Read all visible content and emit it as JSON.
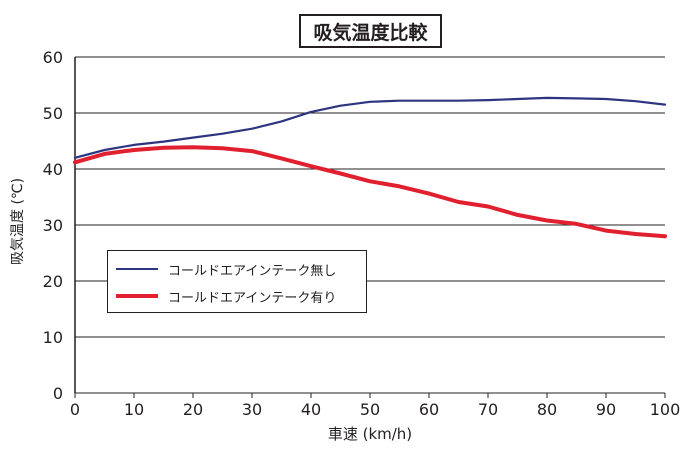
{
  "chart_data": {
    "type": "line",
    "title": "吸気温度比較",
    "xlabel": "車速 (km/h)",
    "ylabel": "吸気温度 (℃)",
    "xlim": [
      0,
      100
    ],
    "ylim": [
      0,
      60
    ],
    "x_ticks": [
      "0",
      "10",
      "20",
      "30",
      "40",
      "50",
      "60",
      "70",
      "80",
      "90",
      "100"
    ],
    "y_ticks": [
      "0",
      "10",
      "20",
      "30",
      "40",
      "50",
      "60"
    ],
    "grid": "horizontal",
    "legend_position": "center-left",
    "series": [
      {
        "name": "コールドエアインテーク無し",
        "color": "#2e3580",
        "x": [
          0,
          5,
          10,
          15,
          20,
          25,
          30,
          35,
          40,
          45,
          50,
          55,
          60,
          65,
          70,
          75,
          80,
          85,
          90,
          95,
          100
        ],
        "values": [
          42.0,
          43.4,
          44.3,
          44.9,
          45.6,
          46.3,
          47.2,
          48.5,
          50.2,
          51.3,
          52.0,
          52.2,
          52.2,
          52.2,
          52.3,
          52.5,
          52.7,
          52.6,
          52.5,
          52.1,
          51.5
        ]
      },
      {
        "name": "コールドエアインテーク有り",
        "color": "#e0202e",
        "x": [
          0,
          5,
          10,
          15,
          20,
          25,
          30,
          35,
          40,
          45,
          50,
          55,
          60,
          65,
          70,
          75,
          80,
          85,
          90,
          95,
          100
        ],
        "values": [
          41.2,
          42.7,
          43.4,
          43.8,
          43.9,
          43.7,
          43.2,
          41.9,
          40.5,
          39.2,
          37.8,
          36.9,
          35.6,
          34.1,
          33.3,
          31.8,
          30.8,
          30.2,
          29.0,
          28.4,
          28.0
        ]
      }
    ]
  }
}
